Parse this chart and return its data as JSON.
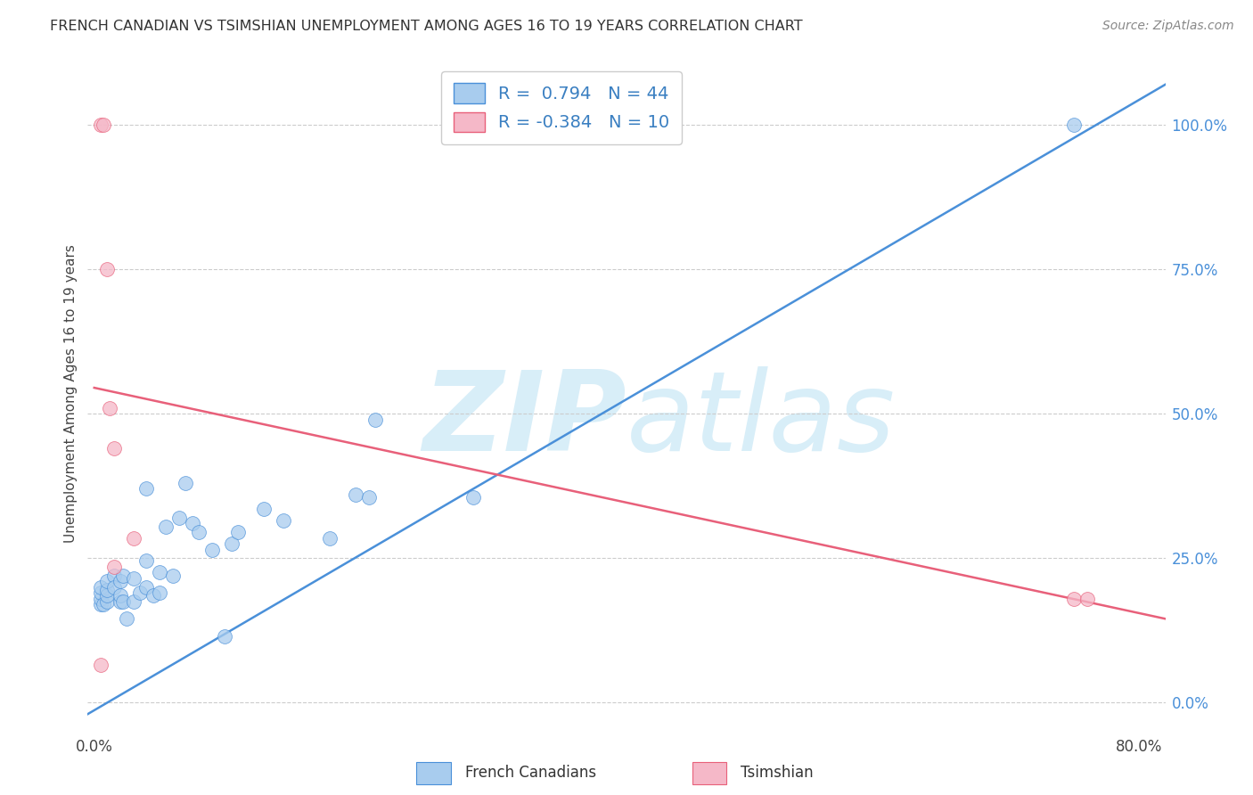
{
  "title": "FRENCH CANADIAN VS TSIMSHIAN UNEMPLOYMENT AMONG AGES 16 TO 19 YEARS CORRELATION CHART",
  "source": "Source: ZipAtlas.com",
  "ylabel": "Unemployment Among Ages 16 to 19 years",
  "xlim": [
    -0.005,
    0.82
  ],
  "ylim": [
    -0.05,
    1.12
  ],
  "xticks": [
    0.0,
    0.1,
    0.2,
    0.3,
    0.4,
    0.5,
    0.6,
    0.7,
    0.8
  ],
  "yticks_right": [
    0.0,
    0.25,
    0.5,
    0.75,
    1.0
  ],
  "ytick_labels_right": [
    "0.0%",
    "25.0%",
    "50.0%",
    "75.0%",
    "100.0%"
  ],
  "blue_color": "#A8CCEE",
  "pink_color": "#F5B8C8",
  "blue_line_color": "#4A90D9",
  "pink_line_color": "#E8607A",
  "watermark_color": "#D8EEF8",
  "legend_R_blue": "0.794",
  "legend_N_blue": "44",
  "legend_R_pink": "-0.384",
  "legend_N_pink": "10",
  "background_color": "#FFFFFF",
  "grid_color": "#CCCCCC",
  "blue_dots_x": [
    0.005,
    0.005,
    0.005,
    0.005,
    0.007,
    0.01,
    0.01,
    0.01,
    0.01,
    0.015,
    0.015,
    0.02,
    0.02,
    0.02,
    0.022,
    0.022,
    0.025,
    0.03,
    0.03,
    0.035,
    0.04,
    0.04,
    0.04,
    0.045,
    0.05,
    0.05,
    0.055,
    0.06,
    0.065,
    0.07,
    0.075,
    0.08,
    0.09,
    0.1,
    0.105,
    0.11,
    0.13,
    0.145,
    0.18,
    0.2,
    0.21,
    0.215,
    0.29,
    0.75
  ],
  "blue_dots_y": [
    0.17,
    0.18,
    0.19,
    0.2,
    0.17,
    0.175,
    0.185,
    0.195,
    0.21,
    0.22,
    0.2,
    0.175,
    0.185,
    0.21,
    0.22,
    0.175,
    0.145,
    0.175,
    0.215,
    0.19,
    0.2,
    0.37,
    0.245,
    0.185,
    0.19,
    0.225,
    0.305,
    0.22,
    0.32,
    0.38,
    0.31,
    0.295,
    0.265,
    0.115,
    0.275,
    0.295,
    0.335,
    0.315,
    0.285,
    0.36,
    0.355,
    0.49,
    0.355,
    1.0
  ],
  "pink_dots_x": [
    0.005,
    0.007,
    0.01,
    0.012,
    0.015,
    0.015,
    0.03,
    0.75,
    0.76,
    0.005
  ],
  "pink_dots_y": [
    1.0,
    1.0,
    0.75,
    0.51,
    0.44,
    0.235,
    0.285,
    0.18,
    0.18,
    0.065
  ],
  "blue_line_x": [
    -0.005,
    0.82
  ],
  "blue_line_y": [
    -0.02,
    1.07
  ],
  "pink_line_x": [
    0.0,
    0.82
  ],
  "pink_line_y": [
    0.545,
    0.145
  ],
  "figsize": [
    14.06,
    8.92
  ],
  "dpi": 100
}
